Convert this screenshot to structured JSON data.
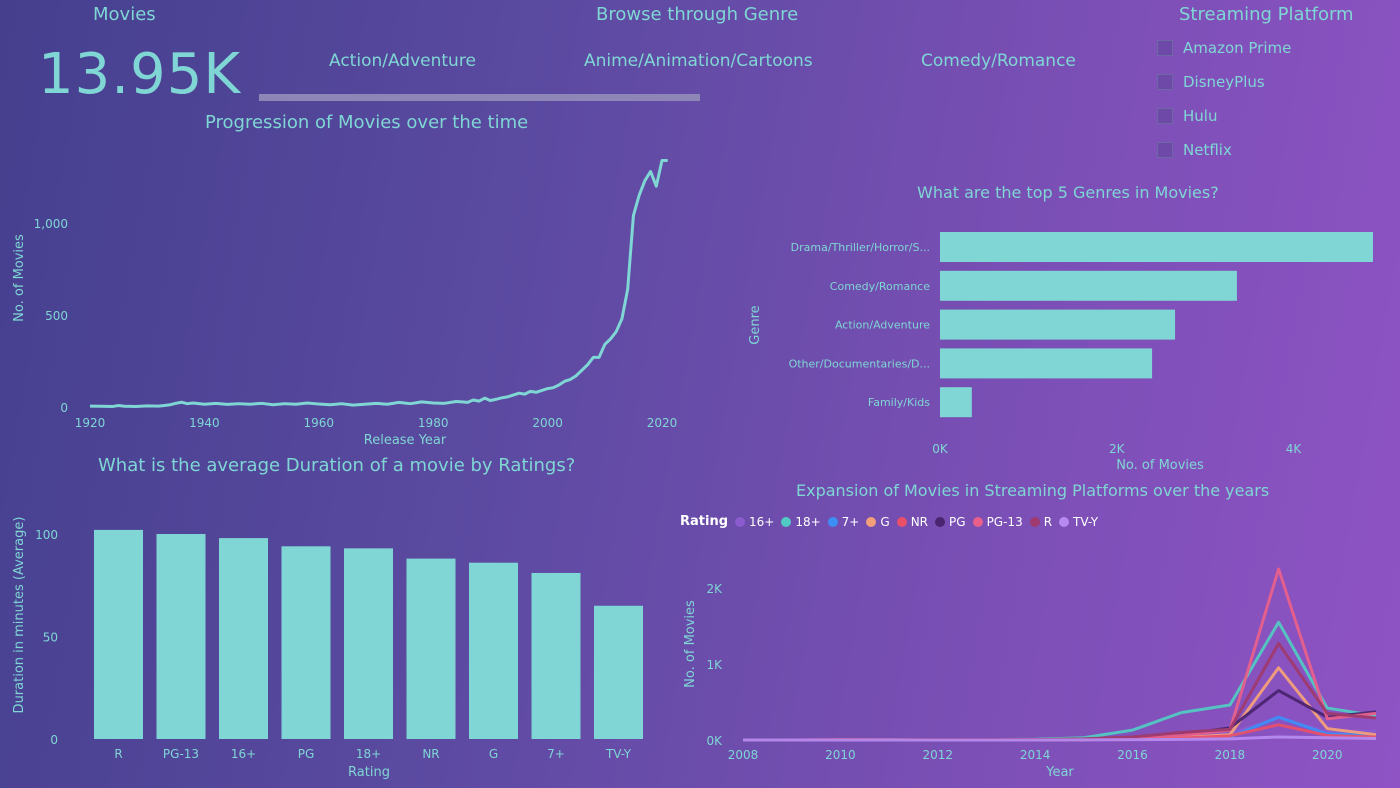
{
  "header": {
    "movies_label": "Movies",
    "movies_count": "13.95K",
    "genre_title": "Browse through Genre",
    "genres": [
      "Action/Adventure",
      "Anime/Animation/Cartoons",
      "Comedy/Romance"
    ],
    "platform_title": "Streaming Platform",
    "platforms": [
      "Amazon Prime",
      "DisneyPlus",
      "Hulu",
      "Netflix"
    ]
  },
  "colors": {
    "accent": "#7fd6d4",
    "background_start": "#453f8e",
    "background_end": "#8f53c4"
  },
  "chart_data": [
    {
      "id": "progression",
      "type": "line",
      "title": "Progression of Movies over the time",
      "xlabel": "Release Year",
      "ylabel": "No. of Movies",
      "xlim": [
        1918,
        2022
      ],
      "ylim": [
        0,
        1500
      ],
      "xticks": [
        "1920",
        "1940",
        "1960",
        "1980",
        "2000",
        "2020"
      ],
      "yticks": [
        "0",
        "500",
        "1,000"
      ],
      "x": [
        1920,
        1922,
        1924,
        1925,
        1926,
        1928,
        1930,
        1932,
        1933,
        1934,
        1935,
        1936,
        1937,
        1938,
        1940,
        1942,
        1944,
        1946,
        1948,
        1950,
        1952,
        1954,
        1956,
        1958,
        1960,
        1962,
        1964,
        1966,
        1968,
        1970,
        1972,
        1974,
        1976,
        1978,
        1980,
        1982,
        1984,
        1985,
        1986,
        1987,
        1988,
        1989,
        1990,
        1991,
        1992,
        1993,
        1994,
        1995,
        1996,
        1997,
        1998,
        1999,
        2000,
        2001,
        2002,
        2003,
        2004,
        2005,
        2006,
        2007,
        2008,
        2009,
        2010,
        2011,
        2012,
        2013,
        2014,
        2015,
        2016,
        2017,
        2018,
        2019,
        2020,
        2021
      ],
      "y": [
        5,
        4,
        3,
        8,
        4,
        3,
        6,
        5,
        8,
        12,
        20,
        26,
        18,
        22,
        15,
        20,
        14,
        18,
        15,
        20,
        12,
        18,
        15,
        22,
        16,
        12,
        18,
        10,
        15,
        20,
        15,
        25,
        18,
        28,
        22,
        20,
        30,
        28,
        25,
        38,
        32,
        48,
        35,
        42,
        50,
        55,
        65,
        75,
        70,
        85,
        80,
        90,
        100,
        105,
        120,
        140,
        150,
        170,
        200,
        230,
        270,
        270,
        340,
        370,
        410,
        480,
        640,
        1040,
        1150,
        1230,
        1280,
        1200,
        1340,
        1340
      ]
    },
    {
      "id": "top5",
      "type": "bar",
      "orientation": "horizontal",
      "title": "What are the top 5 Genres in Movies?",
      "xlabel": "No. of Movies",
      "ylabel": "Genre",
      "xlim": [
        0,
        4900
      ],
      "xticks": [
        "0K",
        "2K",
        "4K"
      ],
      "categories": [
        "Drama/Thriller/Horror/S...",
        "Comedy/Romance",
        "Action/Adventure",
        "Other/Documentaries/D...",
        "Family/Kids"
      ],
      "values": [
        4900,
        3360,
        2660,
        2400,
        360
      ]
    },
    {
      "id": "duration",
      "type": "bar",
      "title": "What is the average Duration of a movie by Ratings?",
      "xlabel": "Rating",
      "ylabel": "Duration in minutes (Average)",
      "ylim": [
        0,
        100
      ],
      "yticks": [
        "0",
        "50",
        "100"
      ],
      "categories": [
        "R",
        "PG-13",
        "16+",
        "PG",
        "18+",
        "NR",
        "G",
        "7+",
        "TV-Y"
      ],
      "values": [
        102,
        100,
        98,
        94,
        93,
        88,
        86,
        81,
        65
      ]
    },
    {
      "id": "expansion",
      "type": "line",
      "title": "Expansion of Movies in Streaming Platforms over the years",
      "xlabel": "Year",
      "ylabel": "No. of Movies",
      "legend_title": "Rating",
      "legend_position": "top-left",
      "xlim": [
        2008,
        2021
      ],
      "ylim": [
        0,
        2500
      ],
      "xticks": [
        "2008",
        "2010",
        "2012",
        "2014",
        "2016",
        "2018",
        "2020"
      ],
      "yticks": [
        "0K",
        "1K",
        "2K"
      ],
      "x": [
        2008,
        2009,
        2010,
        2011,
        2012,
        2013,
        2014,
        2015,
        2016,
        2017,
        2018,
        2019,
        2020,
        2021
      ],
      "series": [
        {
          "name": "16+",
          "color": "#8a5cd0",
          "values": [
            0,
            0,
            0,
            0,
            0,
            5,
            5,
            10,
            20,
            40,
            80,
            300,
            100,
            120
          ]
        },
        {
          "name": "18+",
          "color": "#52c9c2",
          "values": [
            0,
            0,
            0,
            2,
            3,
            5,
            10,
            30,
            130,
            360,
            460,
            1550,
            420,
            320
          ]
        },
        {
          "name": "7+",
          "color": "#3d8ef5",
          "values": [
            0,
            0,
            0,
            0,
            0,
            0,
            2,
            5,
            10,
            20,
            40,
            300,
            80,
            60
          ]
        },
        {
          "name": "G",
          "color": "#f3a07a",
          "values": [
            0,
            0,
            0,
            0,
            0,
            0,
            2,
            5,
            15,
            30,
            70,
            950,
            150,
            70
          ]
        },
        {
          "name": "NR",
          "color": "#e8506a",
          "values": [
            0,
            0,
            5,
            3,
            3,
            5,
            2,
            5,
            10,
            25,
            55,
            200,
            60,
            40
          ]
        },
        {
          "name": "PG",
          "color": "#4a2470",
          "values": [
            0,
            0,
            0,
            0,
            5,
            5,
            5,
            10,
            25,
            70,
            160,
            650,
            300,
            370
          ]
        },
        {
          "name": "PG-13",
          "color": "#e8608a",
          "values": [
            0,
            0,
            0,
            0,
            0,
            0,
            5,
            10,
            30,
            60,
            130,
            2250,
            280,
            350
          ]
        },
        {
          "name": "R",
          "color": "#9e3a6e",
          "values": [
            0,
            0,
            0,
            0,
            5,
            3,
            5,
            15,
            40,
            100,
            140,
            1270,
            350,
            290
          ]
        },
        {
          "name": "TV-Y",
          "color": "#b68af0",
          "values": [
            0,
            0,
            0,
            0,
            0,
            0,
            0,
            2,
            5,
            8,
            15,
            40,
            30,
            20
          ]
        }
      ]
    }
  ]
}
